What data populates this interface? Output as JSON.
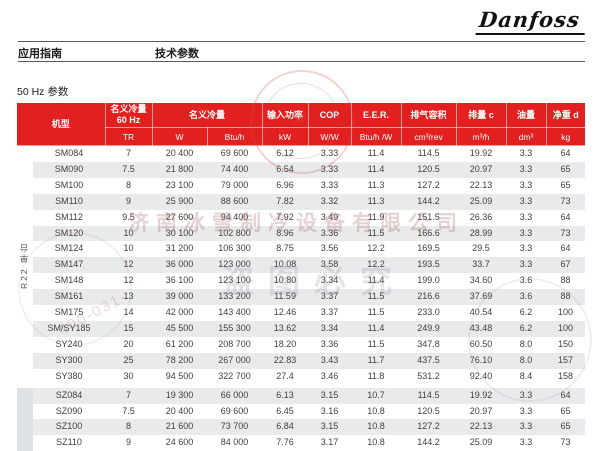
{
  "brand": {
    "logo_text": "Danfoss"
  },
  "nav": {
    "left_item": "应用指南",
    "active_item": "技术参数"
  },
  "section_title": "50 Hz 参数",
  "table": {
    "model_header": "机型",
    "columns": [
      {
        "label": "名义冷量\n60 Hz",
        "units": [
          "TR"
        ]
      },
      {
        "label": "名义冷量",
        "units": [
          "W",
          "Btu/h"
        ]
      },
      {
        "label": "输入功率",
        "units": [
          "kW"
        ]
      },
      {
        "label": "COP",
        "units": [
          "W/W"
        ]
      },
      {
        "label": "E.E.R.",
        "units": [
          "Btu/h /W"
        ]
      },
      {
        "label": "排气容积",
        "units": [
          "cm³/rev"
        ]
      },
      {
        "label": "排量 c",
        "units": [
          "m³/h"
        ]
      },
      {
        "label": "油量",
        "units": [
          "dm³"
        ]
      },
      {
        "label": "净重 d",
        "units": [
          "kg"
        ]
      }
    ],
    "groups": [
      {
        "label": "R22 单台",
        "start": 0,
        "count": 15,
        "separator": false
      },
      {
        "label": "",
        "start": 15,
        "count": 4,
        "separator": true
      }
    ],
    "rows": [
      {
        "model": "SM084",
        "values": [
          "7",
          "20 400",
          "69 600",
          "6.12",
          "3.33",
          "11.4",
          "114.5",
          "19.92",
          "3.3",
          "64"
        ]
      },
      {
        "model": "SM090",
        "values": [
          "7.5",
          "21 800",
          "74 400",
          "6.54",
          "3.33",
          "11.4",
          "120.5",
          "20.97",
          "3.3",
          "65"
        ]
      },
      {
        "model": "SM100",
        "values": [
          "8",
          "23 100",
          "79 000",
          "6.96",
          "3.33",
          "11.3",
          "127.2",
          "22.13",
          "3.3",
          "65"
        ]
      },
      {
        "model": "SM110",
        "values": [
          "9",
          "25 900",
          "88 600",
          "7.82",
          "3.32",
          "11.3",
          "144.2",
          "25.09",
          "3.3",
          "73"
        ]
      },
      {
        "model": "SM112",
        "values": [
          "9.5",
          "27 600",
          "94 400",
          "7.92",
          "3.49",
          "11.9",
          "151.5",
          "26.36",
          "3.3",
          "64"
        ]
      },
      {
        "model": "SM120",
        "values": [
          "10",
          "30 100",
          "102 800",
          "8.96",
          "3.36",
          "11.5",
          "166.6",
          "28.99",
          "3.3",
          "73"
        ]
      },
      {
        "model": "SM124",
        "values": [
          "10",
          "31 200",
          "106 300",
          "8.75",
          "3.56",
          "12.2",
          "169.5",
          "29.5",
          "3.3",
          "64"
        ]
      },
      {
        "model": "SM147",
        "values": [
          "12",
          "36 000",
          "123 000",
          "10.08",
          "3.58",
          "12.2",
          "193.5",
          "33.7",
          "3.3",
          "67"
        ]
      },
      {
        "model": "SM148",
        "values": [
          "12",
          "36 100",
          "123 100",
          "10.80",
          "3.34",
          "11.4",
          "199.0",
          "34.60",
          "3.6",
          "88"
        ]
      },
      {
        "model": "SM161",
        "values": [
          "13",
          "39 000",
          "133 200",
          "11.59",
          "3.37",
          "11.5",
          "216.6",
          "37.69",
          "3.6",
          "88"
        ]
      },
      {
        "model": "SM175",
        "values": [
          "14",
          "42 000",
          "143 400",
          "12.46",
          "3.37",
          "11.5",
          "233.0",
          "40.54",
          "6.2",
          "100"
        ]
      },
      {
        "model": "SM/SY185",
        "values": [
          "15",
          "45 500",
          "155 300",
          "13.62",
          "3.34",
          "11.4",
          "249.9",
          "43.48",
          "6.2",
          "100"
        ]
      },
      {
        "model": "SY240",
        "values": [
          "20",
          "61 200",
          "208 700",
          "18.20",
          "3.36",
          "11.5",
          "347.8",
          "60.50",
          "8.0",
          "150"
        ]
      },
      {
        "model": "SY300",
        "values": [
          "25",
          "78 200",
          "267 000",
          "22.83",
          "3.43",
          "11.7",
          "437.5",
          "76.10",
          "8.0",
          "157"
        ]
      },
      {
        "model": "SY380",
        "values": [
          "30",
          "94 500",
          "322 700",
          "27.4",
          "3.46",
          "11.8",
          "531.2",
          "92.40",
          "8.4",
          "158"
        ]
      },
      {
        "model": "SZ084",
        "values": [
          "7",
          "19 300",
          "66 000",
          "6.13",
          "3.15",
          "10.7",
          "114.5",
          "19.92",
          "3.3",
          "64"
        ]
      },
      {
        "model": "SZ090",
        "values": [
          "7.5",
          "20 400",
          "69 600",
          "6.45",
          "3.16",
          "10.8",
          "120.5",
          "20.97",
          "3.3",
          "65"
        ]
      },
      {
        "model": "SZ100",
        "values": [
          "8",
          "21 600",
          "73 700",
          "6.84",
          "3.15",
          "10.8",
          "127.2",
          "22.13",
          "3.3",
          "65"
        ]
      },
      {
        "model": "SZ110",
        "values": [
          "9",
          "24 600",
          "84 000",
          "7.76",
          "3.17",
          "10.8",
          "144.2",
          "25.09",
          "3.3",
          "73"
        ]
      }
    ]
  },
  "watermark": {
    "company": "济南冰雪制冷设备有限公司",
    "notice": "盗图必究",
    "phone": "400-031-",
    "star": "★"
  }
}
